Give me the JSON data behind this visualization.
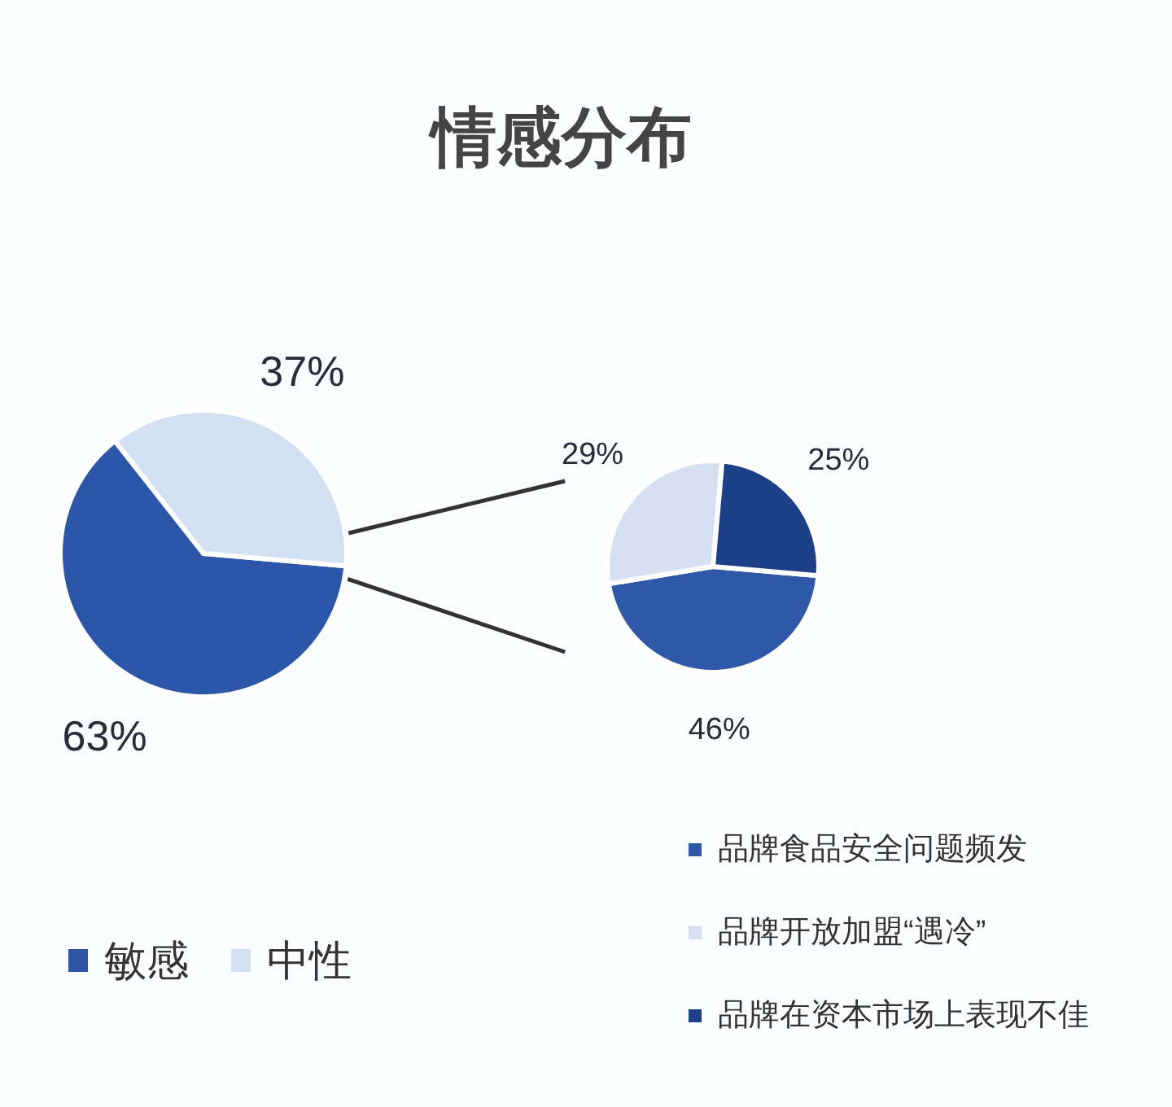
{
  "chart_data": [
    {
      "type": "pie",
      "title": "情感分布",
      "categories": [
        "敏感",
        "中性"
      ],
      "values": [
        63,
        37
      ],
      "colors": [
        "#2c57a8",
        "#d3dff3"
      ],
      "value_labels": [
        "63%",
        "37%"
      ],
      "legend": "bottom left"
    },
    {
      "type": "pie",
      "categories": [
        "品牌食品安全问题频发",
        "品牌开放加盟“遇冷”",
        "品牌在资本市场上表现不佳"
      ],
      "values": [
        46,
        29,
        25
      ],
      "colors": [
        "#2f58a8",
        "#d5e0f3",
        "#1c3f88"
      ],
      "value_labels": [
        "46%",
        "29%",
        "25%"
      ],
      "legend": "bottom right"
    }
  ]
}
